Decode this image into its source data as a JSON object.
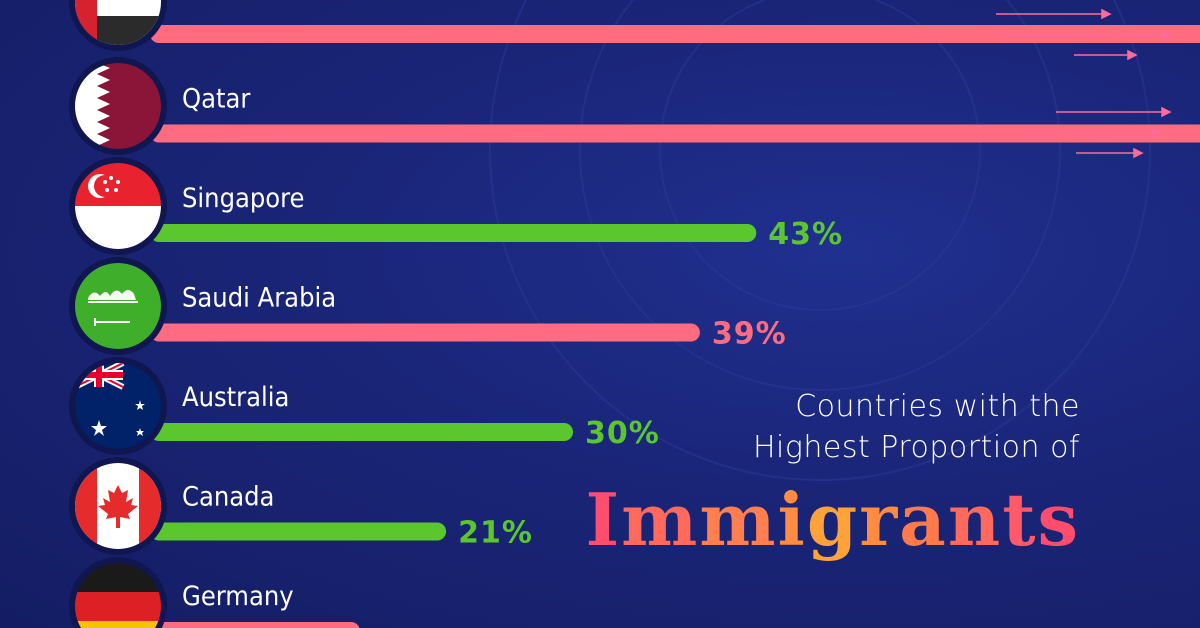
{
  "title": {
    "line1": "Countries with the",
    "line2": "Highest Proportion of",
    "emphasis": "Immigrants",
    "emphasis_colors": [
      "#ff4d6d",
      "#ff6a5c",
      "#ff7f50",
      "#ff8c42",
      "#ffa23a",
      "#ff8c42",
      "#ff7a4a",
      "#ff6a5c",
      "#ff5a6a",
      "#ff4d6d"
    ]
  },
  "colors": {
    "background": "#1a2578",
    "pink": "#ff6b81",
    "green": "#5cc62e",
    "arrow": "#ff6b9a"
  },
  "chart_data": {
    "type": "bar",
    "orientation": "horizontal",
    "unit": "%",
    "note": "Top two bars extend beyond the frame (values exceed the visible scale)",
    "bars": [
      {
        "country": "",
        "flag": "uae-flag",
        "value": null,
        "value_label": "",
        "color": "#ff6b81",
        "overflow": true
      },
      {
        "country": "Qatar",
        "flag": "qatar-flag",
        "value": null,
        "value_label": "",
        "color": "#ff6b81",
        "overflow": true
      },
      {
        "country": "Singapore",
        "flag": "singapore-flag",
        "value": 43,
        "value_label": "43%",
        "color": "#5cc62e"
      },
      {
        "country": "Saudi Arabia",
        "flag": "saudi-arabia-flag",
        "value": 39,
        "value_label": "39%",
        "color": "#ff6b81"
      },
      {
        "country": "Australia",
        "flag": "australia-flag",
        "value": 30,
        "value_label": "30%",
        "color": "#5cc62e"
      },
      {
        "country": "Canada",
        "flag": "canada-flag",
        "value": 21,
        "value_label": "21%",
        "color": "#5cc62e"
      },
      {
        "country": "Germany",
        "flag": "germany-flag",
        "value": null,
        "value_label": "",
        "color": "#ff6b81",
        "overflow": false
      }
    ]
  }
}
